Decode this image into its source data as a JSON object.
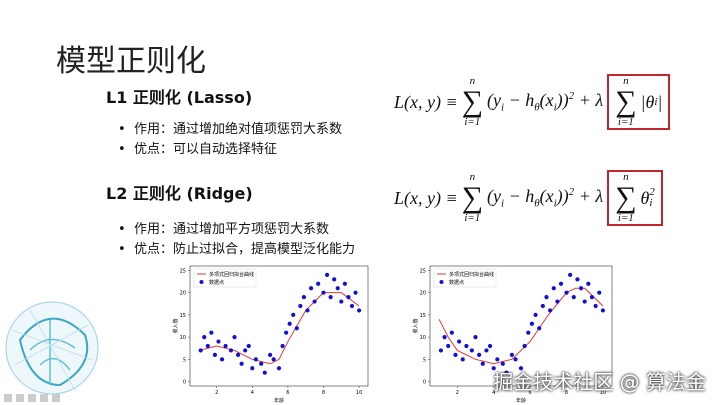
{
  "header": {
    "title": "模型正则化"
  },
  "sections": [
    {
      "heading": "L1 正则化 (Lasso)",
      "bullets": [
        "作用：通过增加绝对值项惩罚大系数",
        "优点：可以自动选择特征"
      ],
      "formula": {
        "lhs": "L(x, y) ≡",
        "sum_upper": "n",
        "sum_symbol": "∑",
        "sum_lower": "i=1",
        "residual": "(y",
        "residual_sub": "i",
        "residual_mid": " − h",
        "h_sub": "θ",
        "residual_x": "(x",
        "x_sub": "i",
        "residual_end": "))",
        "power": "2",
        "plus": "+ λ",
        "penalty_upper": "n",
        "penalty_symbol": "∑",
        "penalty_lower": "i=1",
        "penalty": "|θ",
        "penalty_sub": "i",
        "penalty_end": "|"
      }
    },
    {
      "heading": "L2 正则化 (Ridge)",
      "bullets": [
        "作用：通过增加平方项惩罚大系数",
        "优点：防止过拟合，提高模型泛化能力"
      ],
      "formula": {
        "lhs": "L(x, y) ≡",
        "sum_upper": "n",
        "sum_symbol": "∑",
        "sum_lower": "i=1",
        "residual": "(y",
        "residual_sub": "i",
        "residual_mid": " − h",
        "h_sub": "θ",
        "residual_x": "(x",
        "x_sub": "i",
        "residual_end": "))",
        "power": "2",
        "plus": "+ λ",
        "penalty_upper": "n",
        "penalty_symbol": "∑",
        "penalty_lower": "i=1",
        "penalty": "θ",
        "penalty_sub": "i",
        "penalty_sup": "2"
      }
    }
  ],
  "plots": [
    {
      "legend": [
        "多项式回归拟合曲线",
        "数据点"
      ],
      "xlabel": "年龄",
      "ylabel": "收入值",
      "xlim": [
        0.5,
        10.5
      ],
      "ylim": [
        -1,
        26
      ],
      "xticks": [
        2,
        4,
        6,
        8,
        10
      ],
      "yticks": [
        0,
        5,
        10,
        15,
        20,
        25
      ],
      "curve_color": "#e8382f",
      "point_color": "#1010d8",
      "points_x": [
        1.1,
        1.3,
        1.5,
        1.7,
        1.9,
        2.1,
        2.3,
        2.5,
        2.8,
        3,
        3.2,
        3.4,
        3.6,
        3.8,
        4,
        4.2,
        4.5,
        4.7,
        5,
        5.2,
        5.5,
        5.7,
        5.9,
        6.1,
        6.3,
        6.5,
        6.7,
        6.9,
        7.1,
        7.3,
        7.5,
        7.7,
        8,
        8.2,
        8.4,
        8.6,
        8.8,
        9,
        9.2,
        9.4,
        9.6,
        9.8,
        10
      ],
      "points_y": [
        7,
        10,
        8,
        11,
        6,
        9,
        5,
        8,
        7,
        10,
        6,
        4,
        7,
        8,
        3,
        5,
        4,
        2,
        6,
        5,
        3,
        8,
        11,
        13,
        15,
        12,
        17,
        19,
        16,
        21,
        18,
        22,
        20,
        24,
        19,
        23,
        21,
        18,
        22,
        19,
        17,
        20,
        16
      ],
      "curve_x": [
        1,
        2,
        3,
        4,
        5,
        5.5,
        6,
        7,
        8,
        9,
        10
      ],
      "curve_y": [
        7,
        8,
        7,
        5,
        4,
        5,
        9,
        16,
        20,
        20,
        17
      ]
    },
    {
      "legend": [
        "多项式回归拟合曲线",
        "数据点"
      ],
      "xlabel": "年龄",
      "ylabel": "收入值",
      "xlim": [
        0.5,
        10.5
      ],
      "ylim": [
        -1,
        26
      ],
      "xticks": [
        2,
        4,
        6,
        8,
        10
      ],
      "yticks": [
        0,
        5,
        10,
        15,
        20,
        25
      ],
      "curve_color": "#e8382f",
      "point_color": "#1010d8",
      "points_x": [
        1.1,
        1.3,
        1.5,
        1.7,
        1.9,
        2.1,
        2.3,
        2.5,
        2.8,
        3,
        3.2,
        3.4,
        3.6,
        3.8,
        4,
        4.2,
        4.5,
        4.7,
        5,
        5.2,
        5.5,
        5.7,
        5.9,
        6.1,
        6.3,
        6.5,
        6.7,
        6.9,
        7.1,
        7.3,
        7.5,
        7.7,
        8,
        8.2,
        8.4,
        8.6,
        8.8,
        9,
        9.2,
        9.4,
        9.6,
        9.8,
        10
      ],
      "points_y": [
        7,
        10,
        8,
        11,
        6,
        9,
        5,
        8,
        7,
        10,
        6,
        4,
        7,
        8,
        3,
        5,
        4,
        2,
        6,
        5,
        3,
        8,
        11,
        13,
        15,
        12,
        17,
        19,
        16,
        21,
        18,
        22,
        20,
        24,
        19,
        23,
        21,
        18,
        22,
        19,
        17,
        20,
        16
      ],
      "curve_x": [
        1,
        1.5,
        2,
        3,
        4,
        5,
        6,
        7,
        8,
        8.5,
        9,
        9.5,
        10
      ],
      "curve_y": [
        14,
        10,
        7,
        5,
        4,
        5,
        9,
        15,
        20,
        21,
        21,
        19,
        17
      ]
    }
  ],
  "watermark": "掘金技术社区 @ 算法金"
}
